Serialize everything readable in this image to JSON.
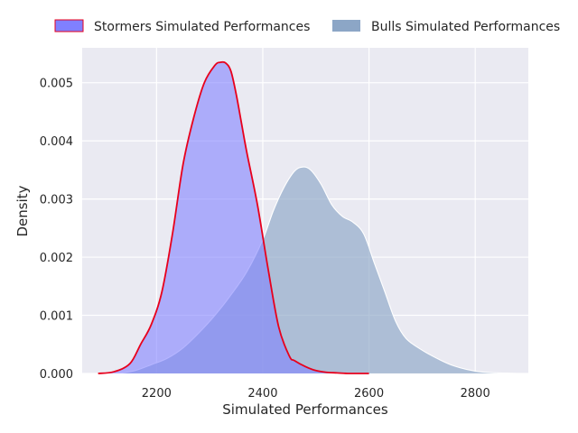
{
  "chart_data": {
    "type": "area",
    "xlabel": "Simulated Performances",
    "ylabel": "Density",
    "xlim": [
      2060,
      2900
    ],
    "ylim": [
      0,
      0.0056
    ],
    "x_ticks": [
      2200,
      2400,
      2600,
      2800
    ],
    "y_ticks": [
      0.0,
      0.001,
      0.002,
      0.003,
      0.004,
      0.005
    ],
    "y_tick_labels": [
      "0.000",
      "0.001",
      "0.002",
      "0.003",
      "0.004",
      "0.005"
    ],
    "grid": true,
    "legend_position": "top",
    "series": [
      {
        "name": "Stormers Simulated Performances",
        "fill_color": "#8080ff",
        "line_color": "#e8001c",
        "x": [
          2090,
          2120,
          2150,
          2170,
          2190,
          2210,
          2230,
          2250,
          2270,
          2290,
          2310,
          2320,
          2330,
          2340,
          2350,
          2360,
          2370,
          2390,
          2410,
          2430,
          2450,
          2460,
          2480,
          2500,
          2520,
          2540,
          2560,
          2580,
          2600
        ],
        "y": [
          0.0,
          3e-05,
          0.00017,
          0.0005,
          0.00084,
          0.0014,
          0.0024,
          0.0036,
          0.0044,
          0.005,
          0.0053,
          0.00535,
          0.00534,
          0.0052,
          0.0048,
          0.0043,
          0.0038,
          0.0029,
          0.0018,
          0.0008,
          0.0003,
          0.00022,
          0.00012,
          5e-05,
          2e-05,
          1e-05,
          0.0,
          0.0,
          0.0
        ]
      },
      {
        "name": "Bulls Simulated Performances",
        "fill_color": "#8ca6c6",
        "line_color": "#ffffff",
        "x": [
          2130,
          2160,
          2190,
          2220,
          2250,
          2280,
          2310,
          2340,
          2370,
          2400,
          2420,
          2440,
          2460,
          2475,
          2490,
          2510,
          2530,
          2550,
          2570,
          2590,
          2610,
          2630,
          2650,
          2670,
          2700,
          2730,
          2760,
          2800,
          2840,
          2880
        ],
        "y": [
          0.0,
          5e-05,
          0.00015,
          0.00026,
          0.00044,
          0.0007,
          0.001,
          0.00135,
          0.00175,
          0.0023,
          0.0028,
          0.0032,
          0.00348,
          0.00355,
          0.0035,
          0.00325,
          0.0029,
          0.0027,
          0.0026,
          0.0024,
          0.0019,
          0.0014,
          0.0009,
          0.0006,
          0.0004,
          0.00025,
          0.00013,
          4e-05,
          1e-05,
          0.0
        ]
      }
    ]
  }
}
